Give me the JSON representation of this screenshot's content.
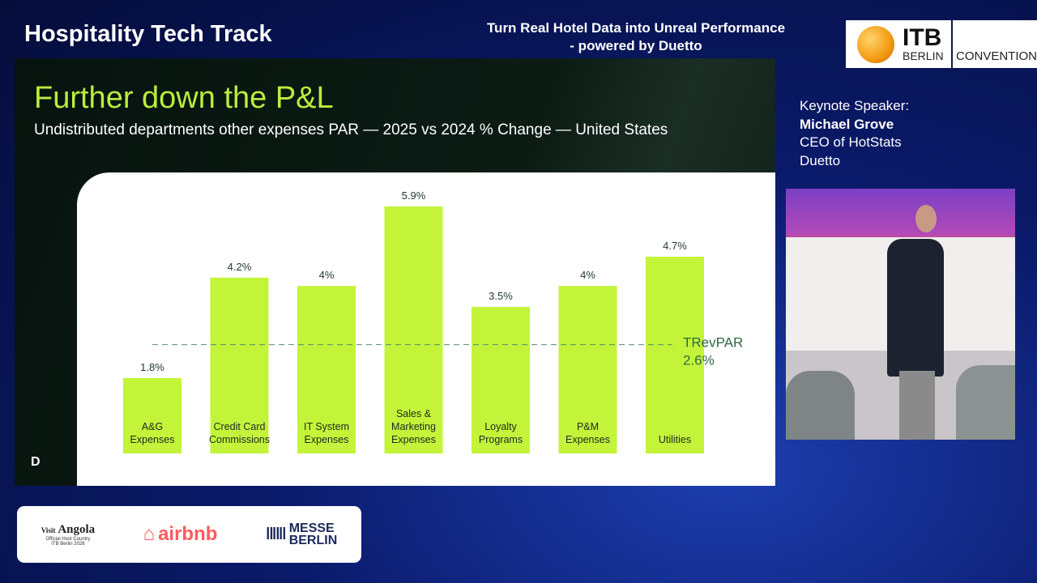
{
  "header": {
    "track": "Hospitality Tech Track",
    "session": "Turn Real Hotel Data into Unreal Performance - powered by Duetto"
  },
  "itb_logo": {
    "main": "ITB",
    "city": "BERLIN",
    "suffix": "CONVENTION"
  },
  "slide": {
    "title": "Further down the P&L",
    "subtitle": "Undistributed departments other expenses PAR — 2025 vs 2024 % Change — United States",
    "corner_logo": "D"
  },
  "speaker": {
    "role": "Keynote Speaker:",
    "name": "Michael Grove",
    "title": "CEO of HotStats",
    "company": "Duetto"
  },
  "sponsors": {
    "angola": {
      "visit": "Visit",
      "name": "Angola",
      "caption1": "Official Host Country",
      "caption2": "ITB Berlin 2026"
    },
    "airbnb": "airbnb",
    "messe": [
      "MESSE",
      "BERLIN"
    ]
  },
  "colors": {
    "bar": "#c3f43a",
    "title": "#b9ee3c",
    "reference_line": "#5a8a70"
  },
  "chart_data": {
    "type": "bar",
    "title": "Further down the P&L",
    "subtitle": "Undistributed departments other expenses PAR — 2025 vs 2024 % Change — United States",
    "categories": [
      [
        "A&G",
        "Expenses"
      ],
      [
        "Credit Card",
        "Commissions"
      ],
      [
        "IT System",
        "Expenses"
      ],
      [
        "Sales &",
        "Marketing",
        "Expenses"
      ],
      [
        "Loyalty",
        "Programs"
      ],
      [
        "P&M",
        "Expenses"
      ],
      [
        "Utilities"
      ]
    ],
    "values": [
      1.8,
      4.2,
      4.0,
      5.9,
      3.5,
      4.0,
      4.7
    ],
    "value_labels": [
      "1.8%",
      "4.2%",
      "4%",
      "5.9%",
      "3.5%",
      "4%",
      "4.7%"
    ],
    "reference_line": {
      "label": "TRevPAR",
      "value": 2.6,
      "value_label": "2.6%",
      "style": "dashed"
    },
    "ylim": [
      0,
      6.5
    ],
    "grid": false,
    "legend": "none"
  }
}
